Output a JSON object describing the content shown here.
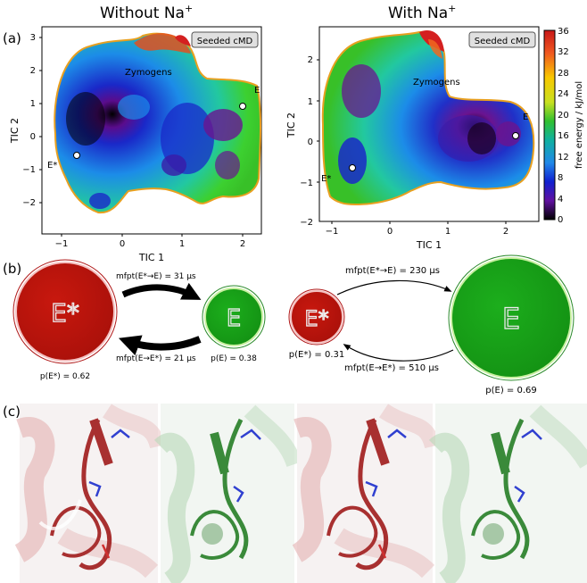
{
  "figure": {
    "titles": {
      "left": "Without Na",
      "right": "With Na",
      "superscript": "+"
    },
    "panel_labels": {
      "a": "(a)",
      "b": "(b)",
      "c": "(c)"
    }
  },
  "panel_a": {
    "badge": "Seeded cMD",
    "xlabel": "TIC 1",
    "ylabel": "TIC 2",
    "state_labels": {
      "zymogens": "Zymogens",
      "e": "E",
      "e_star": "E*"
    },
    "left_plot": {
      "xticks": [
        "−1",
        "0",
        "1",
        "2"
      ],
      "yticks": [
        "3",
        "2",
        "1",
        "0",
        "−1",
        "−2"
      ]
    },
    "right_plot": {
      "xticks": [
        "−1",
        "0",
        "1",
        "2"
      ],
      "yticks": [
        "2",
        "1",
        "0",
        "−1",
        "−2"
      ]
    },
    "colorbar": {
      "label": "free energy / kJ/mol",
      "ticks": [
        "36",
        "32",
        "28",
        "24",
        "20",
        "16",
        "12",
        "8",
        "4",
        "0"
      ],
      "colors": [
        "#d42020",
        "#f06820",
        "#f5c000",
        "#d8e020",
        "#30c030",
        "#10a0a0",
        "#2080e0",
        "#1020d0",
        "#6010a0",
        "#000000"
      ]
    }
  },
  "panel_b": {
    "left": {
      "e_star_label": "E*",
      "e_label": "E",
      "mfpt_top": "mfpt(E*→E) = 31 μs",
      "mfpt_bottom": "mfpt(E→E*) = 21 μs",
      "p_e_star": "p(E*) = 0.62",
      "p_e": "p(E) = 0.38"
    },
    "right": {
      "e_star_label": "E*",
      "e_label": "E",
      "mfpt_top": "mfpt(E*→E) = 230 μs",
      "mfpt_bottom": "mfpt(E→E*) = 510 μs",
      "p_e_star": "p(E*) = 0.31",
      "p_e": "p(E) = 0.69"
    },
    "colors": {
      "e_star": "#c0140c",
      "e": "#18a018"
    }
  },
  "panel_c": {
    "colors": {
      "red_structure": "#a83030",
      "green_structure": "#3a8a3a"
    }
  }
}
